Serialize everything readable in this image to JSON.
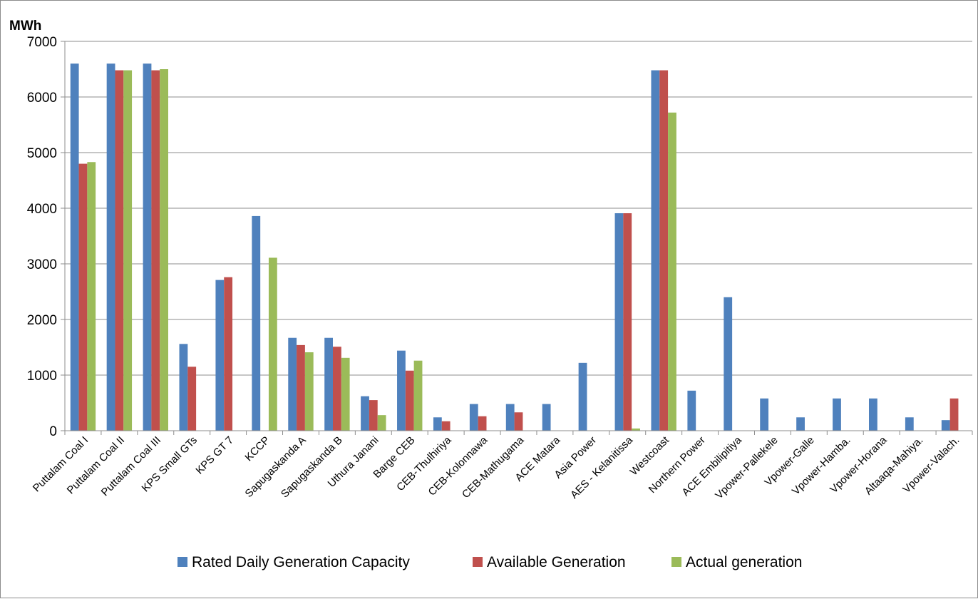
{
  "chart_data": {
    "type": "bar",
    "ylabel": "MWh",
    "ylim": [
      0,
      7000
    ],
    "yticks": [
      0,
      1000,
      2000,
      3000,
      4000,
      5000,
      6000,
      7000
    ],
    "grid": true,
    "legend_position": "bottom",
    "categories": [
      "Puttalam Coal I",
      "Puttalam Coal II",
      "Puttalam Coal III",
      "KPS Small GTs",
      "KPS GT 7",
      "KCCP",
      "Sapugaskanda A",
      "Sapugaskanda B",
      "Uthura Janani",
      "Barge CEB",
      "CEB-Thulhiriya",
      "CEB-Kolonnawa",
      "CEB-Mathugama",
      "ACE Matara",
      "Asia Power",
      "AES - Kelanitissa",
      "Westcoast",
      "Northern Power",
      "ACE Embilipitiya",
      "Vpower-Pallekele",
      "Vpower-Galle",
      "Vpower-Hamba.",
      "Vpower-Horana",
      "Altaaqa-Mahiya.",
      "Vpower-Valach."
    ],
    "series": [
      {
        "name": "Rated Daily Generation Capacity",
        "color": "#4F81BD",
        "values": [
          6600,
          6600,
          6600,
          1560,
          2710,
          3860,
          1670,
          1670,
          620,
          1440,
          240,
          480,
          480,
          480,
          1220,
          3910,
          6480,
          720,
          2400,
          580,
          240,
          580,
          580,
          240,
          190
        ]
      },
      {
        "name": "Available Generation",
        "color": "#C0504D",
        "values": [
          4800,
          6480,
          6480,
          1150,
          2760,
          0,
          1540,
          1510,
          550,
          1080,
          170,
          260,
          330,
          0,
          0,
          3910,
          6480,
          0,
          0,
          0,
          0,
          0,
          0,
          0,
          580
        ]
      },
      {
        "name": "Actual generation",
        "color": "#9BBB59",
        "values": [
          4830,
          6480,
          6500,
          0,
          0,
          3110,
          1410,
          1310,
          280,
          1260,
          0,
          0,
          0,
          0,
          0,
          40,
          5720,
          0,
          0,
          0,
          0,
          0,
          0,
          0,
          0
        ]
      }
    ]
  }
}
